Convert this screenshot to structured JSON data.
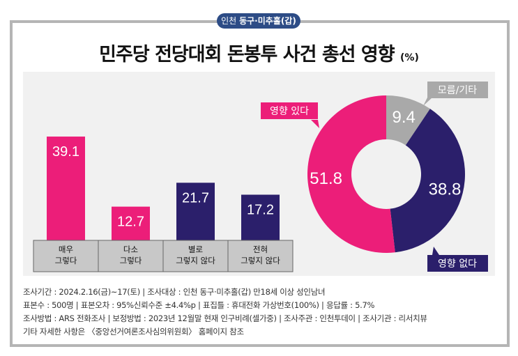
{
  "badge": {
    "prefix": "인천",
    "region": "동구·미추홀(갑)"
  },
  "title": "민주당 전당대회 돈봉투 사건 총선 영향",
  "unit": "(%)",
  "chart_data": [
    {
      "type": "bar",
      "categories": [
        "매우\n그렇다",
        "다소\n그렇다",
        "별로\n그렇지 않다",
        "전혀\n그렇지 않다"
      ],
      "values": [
        39.1,
        12.7,
        21.7,
        17.2
      ],
      "colors": [
        "#ec1e79",
        "#ec1e79",
        "#2b1f6b",
        "#2b1f6b"
      ]
    },
    {
      "type": "pie",
      "donut": true,
      "slices": [
        {
          "label": "모름/기타",
          "value": 9.4,
          "color": "#a9a9a9"
        },
        {
          "label": "영향 없다",
          "value": 38.8,
          "color": "#2b1f6b"
        },
        {
          "label": "영향 있다",
          "value": 51.8,
          "color": "#ec1e79"
        }
      ]
    }
  ],
  "footer": [
    "조사기간 : 2024.2.16(금)~17(토)  |  조사대상 : 인천 동구·미추홀(갑) 만18세 이상 성인남녀",
    "표본수 : 500명  |  표본오차 : 95%신뢰수준 ±4.4%p  |  표집틀 : 휴대전화 가상번호(100%)  |  응답률 : 5.7%",
    "조사방법 : ARS 전화조사  |  보정방법 : 2023년 12월말 현재 인구비례(셀가중)  |  조사주관 : 인천투데이  |  조사기관 : 리서치뷰",
    "기타 자세한 사항은 〈중앙선거여론조사심의위원회〉 홈페이지 참조"
  ]
}
